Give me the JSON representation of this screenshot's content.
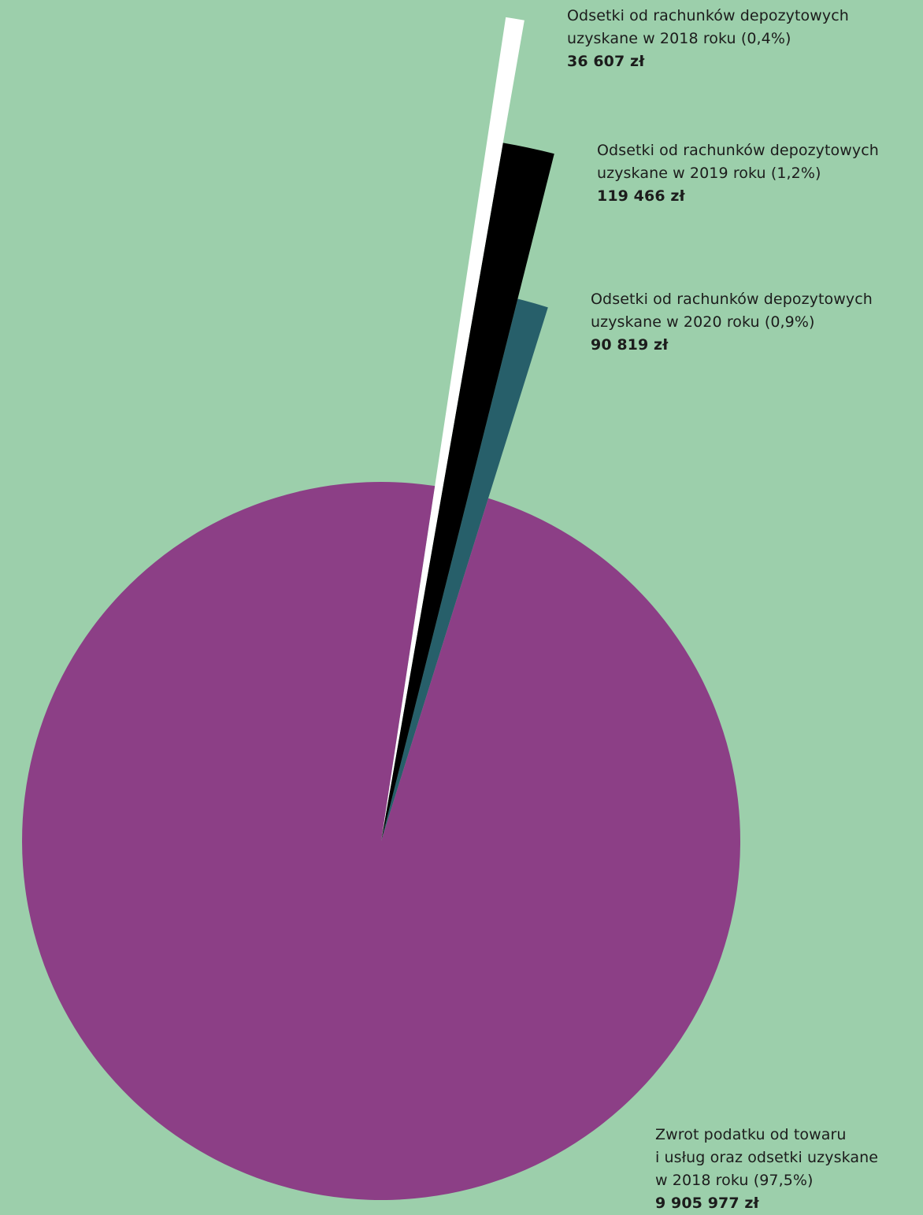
{
  "colors": {
    "background": "#9ccfab",
    "vat_refund": "#8c3f86",
    "interest_2018": "#ffffff",
    "interest_2019": "#000000",
    "interest_2020": "#275f6a"
  },
  "chart_data": {
    "type": "pie",
    "exploded": true,
    "slices": [
      {
        "key": "vat",
        "label_lines": [
          "Zwrot podatku od towaru",
          "i usług oraz odsetki uzyskane",
          "w 2018 roku (97,5%)"
        ],
        "value": 9905977,
        "value_label": "9 905 977 zł",
        "percent": 97.5,
        "color": "#8c3f86"
      },
      {
        "key": "i2018",
        "label_lines": [
          "Odsetki od rachunków depozytowych",
          "uzyskane w 2018 roku (0,4%)"
        ],
        "value": 36607,
        "value_label": "36 607 zł",
        "percent": 0.4,
        "color": "#ffffff"
      },
      {
        "key": "i2019",
        "label_lines": [
          "Odsetki od rachunków depozytowych",
          "uzyskane w 2019 roku (1,2%)"
        ],
        "value": 119466,
        "value_label": "119 466 zł",
        "percent": 1.2,
        "color": "#000000"
      },
      {
        "key": "i2020",
        "label_lines": [
          "Odsetki od rachunków depozytowych",
          "uzyskane w 2020 roku (0,9%)"
        ],
        "value": 90819,
        "value_label": "90 819 zł",
        "percent": 0.9,
        "color": "#275f6a"
      }
    ]
  }
}
